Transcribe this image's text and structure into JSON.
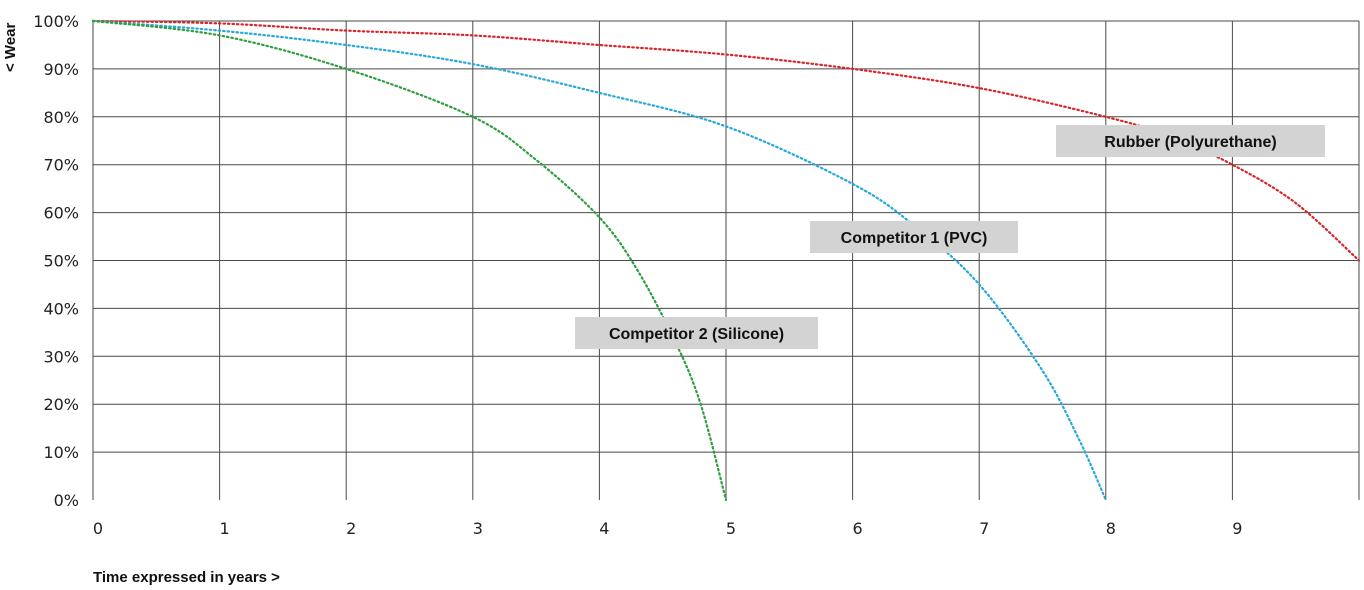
{
  "chart_data": {
    "type": "line",
    "xlabel": "Time expressed in years >",
    "ylabel": "< Wear",
    "x_ticks": [
      "0",
      "1",
      "2",
      "3",
      "4",
      "5",
      "6",
      "7",
      "8",
      "9"
    ],
    "y_ticks": [
      "0%",
      "10%",
      "20%",
      "30%",
      "40%",
      "50%",
      "60%",
      "70%",
      "80%",
      "90%",
      "100%"
    ],
    "xlim": [
      0,
      10
    ],
    "ylim": [
      0,
      100
    ],
    "grid": true,
    "line_style": "dotted",
    "series": [
      {
        "name": "Rubber (Polyurethane)",
        "color": "#d9252a",
        "x": [
          0,
          1,
          2,
          3,
          4,
          5,
          6,
          7,
          8,
          8.5,
          9,
          9.5,
          10
        ],
        "y": [
          100,
          99.5,
          98,
          97,
          95,
          93,
          90,
          86,
          80,
          76,
          70,
          62,
          50
        ]
      },
      {
        "name": "Competitor 1 (PVC)",
        "color": "#28a8d8",
        "x": [
          0,
          1,
          2,
          3,
          4,
          5,
          6,
          6.5,
          7,
          7.5,
          7.8,
          8
        ],
        "y": [
          100,
          98,
          95,
          91,
          85,
          78,
          66,
          57,
          45,
          27,
          12,
          0
        ]
      },
      {
        "name": "Competitor 2 (Silicone)",
        "color": "#2e9e3e",
        "x": [
          0,
          1,
          2,
          3,
          3.5,
          4,
          4.3,
          4.6,
          4.8,
          5
        ],
        "y": [
          100,
          97,
          90,
          80,
          71,
          59,
          48,
          33,
          20,
          0
        ]
      }
    ]
  }
}
